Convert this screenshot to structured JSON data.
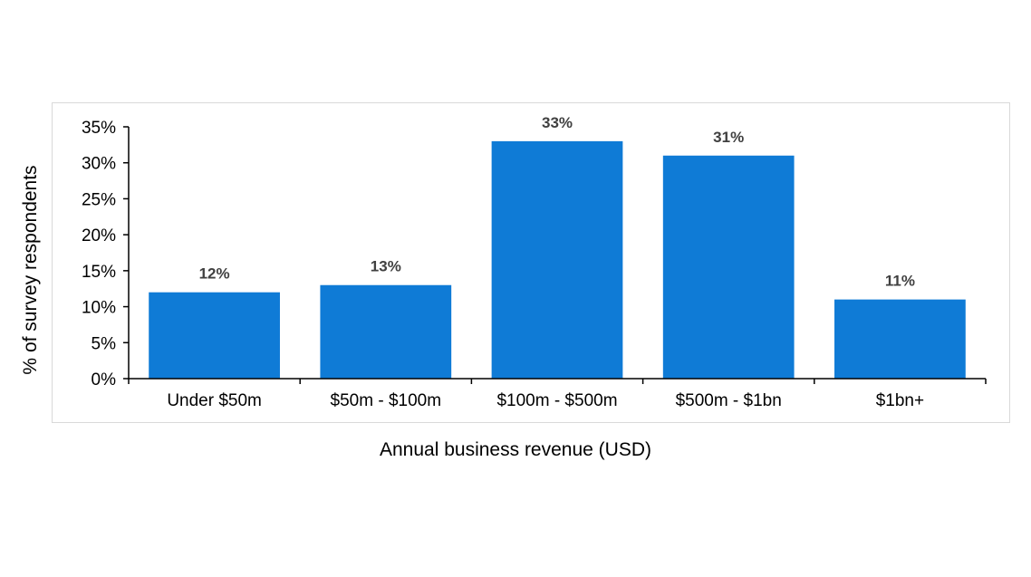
{
  "chart_data": {
    "type": "bar",
    "categories": [
      "Under $50m",
      "$50m - $100m",
      "$100m - $500m",
      "$500m - $1bn",
      "$1bn+"
    ],
    "values": [
      12,
      13,
      33,
      31,
      11
    ],
    "data_labels": [
      "12%",
      "13%",
      "33%",
      "31%",
      "11%"
    ],
    "xlabel": "Annual business revenue (USD)",
    "ylabel": "% of survey respondents",
    "ylim": [
      0,
      35
    ],
    "yticks": [
      0,
      5,
      10,
      15,
      20,
      25,
      30,
      35
    ],
    "ytick_labels": [
      "0%",
      "5%",
      "10%",
      "15%",
      "20%",
      "25%",
      "30%",
      "35%"
    ],
    "bar_color": "#0f7bd6",
    "grid": false,
    "legend": "none"
  }
}
